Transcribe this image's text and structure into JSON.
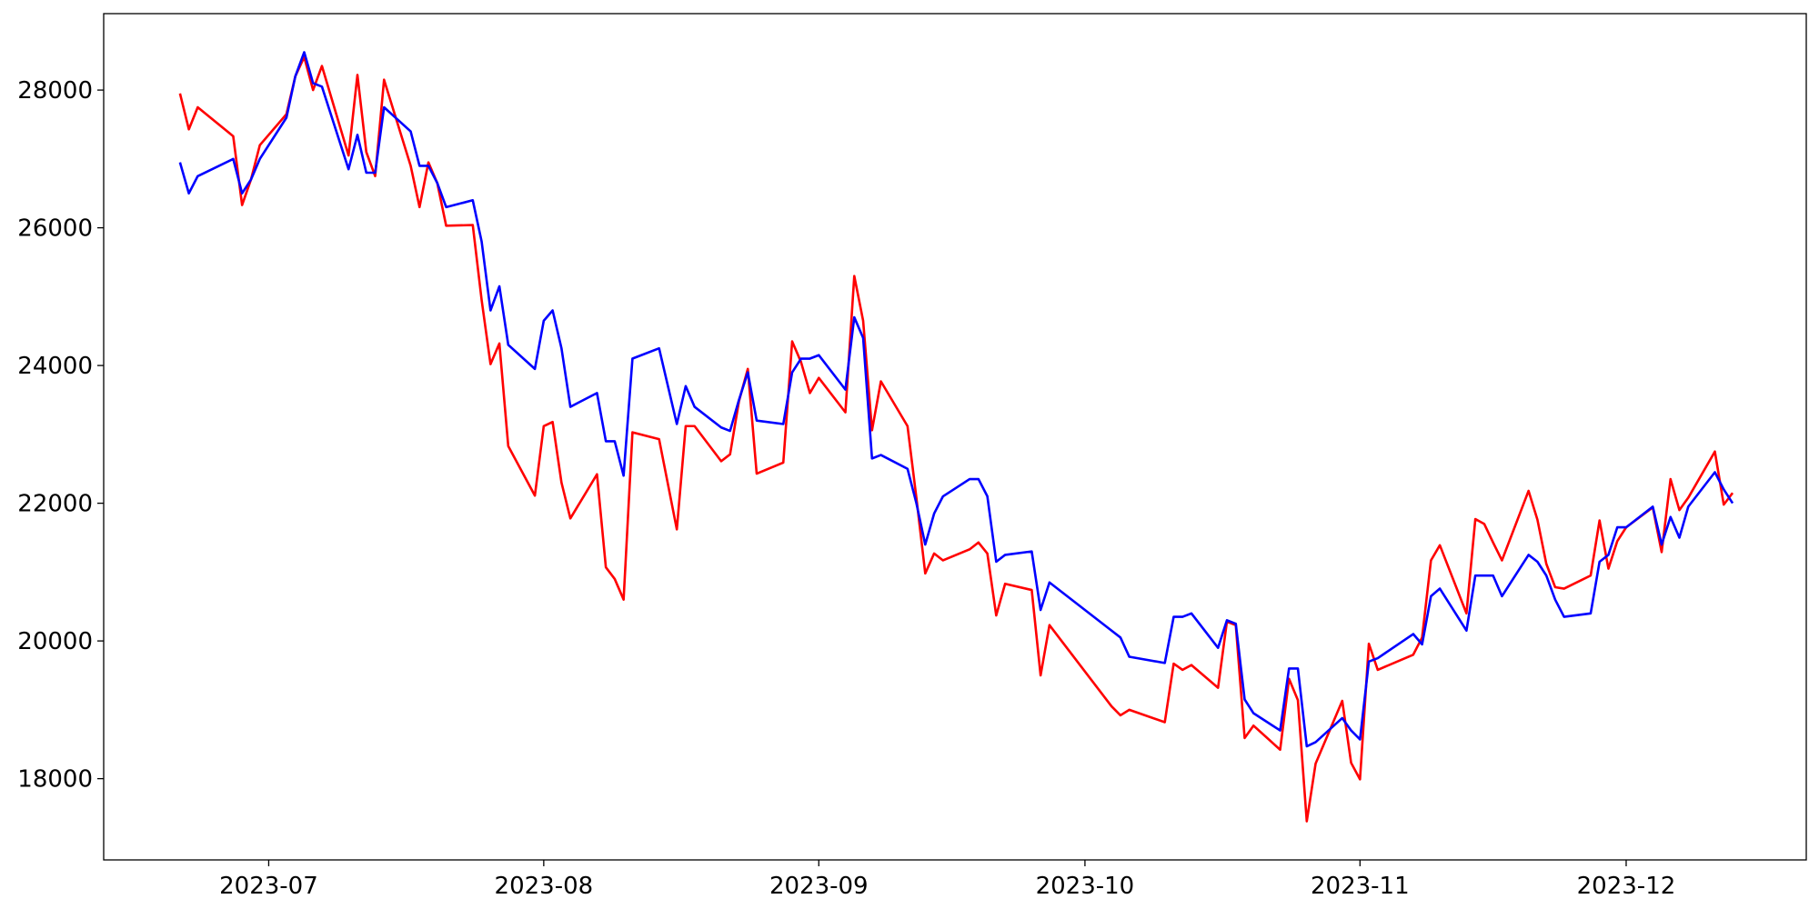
{
  "chart_data": {
    "type": "line",
    "x": [
      172,
      173,
      174,
      178,
      179,
      180,
      181,
      184,
      185,
      186,
      187,
      188,
      191,
      192,
      193,
      194,
      195,
      198,
      199,
      200,
      201,
      202,
      205,
      206,
      207,
      208,
      209,
      212,
      213,
      214,
      215,
      216,
      219,
      220,
      221,
      222,
      223,
      226,
      228,
      229,
      230,
      233,
      234,
      235,
      236,
      237,
      240,
      241,
      242,
      243,
      244,
      247,
      248,
      249,
      250,
      251,
      254,
      255,
      256,
      257,
      258,
      261,
      262,
      263,
      264,
      265,
      268,
      269,
      270,
      277,
      278,
      279,
      283,
      284,
      285,
      286,
      289,
      290,
      291,
      292,
      293,
      296,
      297,
      298,
      299,
      300,
      303,
      304,
      305,
      306,
      307,
      311,
      312,
      313,
      314,
      317,
      318,
      319,
      320,
      321,
      324,
      325,
      326,
      327,
      328,
      331,
      332,
      333,
      334,
      335,
      338,
      339,
      340,
      341,
      342,
      345,
      346,
      347
    ],
    "series": [
      {
        "color": "#ff0000",
        "values": [
          27950,
          27430,
          27750,
          27330,
          26330,
          26700,
          27200,
          27650,
          28200,
          28480,
          28000,
          28350,
          27050,
          28220,
          27100,
          26750,
          28150,
          26900,
          26300,
          26950,
          26650,
          26030,
          26040,
          24950,
          24020,
          24320,
          22830,
          22110,
          23120,
          23180,
          22300,
          21780,
          22420,
          21070,
          20900,
          20600,
          23030,
          22930,
          21620,
          23120,
          23120,
          22610,
          22710,
          23480,
          23950,
          22430,
          22590,
          24350,
          24050,
          23600,
          23820,
          23320,
          25300,
          24650,
          23060,
          23770,
          23120,
          22080,
          20980,
          21270,
          21170,
          21330,
          21430,
          21270,
          20370,
          20830,
          20740,
          19500,
          20230,
          19050,
          18920,
          19000,
          18820,
          19670,
          19580,
          19650,
          19320,
          20280,
          20230,
          18590,
          18770,
          18420,
          19450,
          19140,
          17380,
          18220,
          19130,
          18230,
          17990,
          19960,
          19580,
          19800,
          20050,
          21170,
          21390,
          20400,
          21770,
          21700,
          21430,
          21170,
          22180,
          21760,
          21120,
          20780,
          20760,
          20950,
          21750,
          21050,
          21450,
          21650,
          21940,
          21290,
          22350,
          21900,
          22080,
          22750,
          21980,
          22150
        ]
      },
      {
        "color": "#0000ff",
        "values": [
          26950,
          26500,
          26750,
          27000,
          26500,
          26700,
          27000,
          27600,
          28200,
          28550,
          28100,
          28050,
          26850,
          27350,
          26800,
          26800,
          27750,
          27400,
          26900,
          26900,
          26650,
          26300,
          26400,
          25800,
          24800,
          25150,
          24300,
          23950,
          24650,
          24800,
          24250,
          23400,
          23600,
          22900,
          22900,
          22400,
          24100,
          24250,
          23150,
          23700,
          23400,
          23100,
          23050,
          23500,
          23900,
          23200,
          23150,
          23900,
          24100,
          24100,
          24150,
          23650,
          24700,
          24400,
          22650,
          22700,
          22500,
          22000,
          21400,
          21850,
          22100,
          22350,
          22350,
          22100,
          21150,
          21250,
          21300,
          20450,
          20850,
          20150,
          20050,
          19770,
          19680,
          20350,
          20350,
          20400,
          19900,
          20300,
          20250,
          19150,
          18950,
          18700,
          19600,
          19600,
          18470,
          18530,
          18880,
          18700,
          18570,
          19700,
          19750,
          20100,
          19950,
          20650,
          20760,
          20150,
          20950,
          20950,
          20950,
          20650,
          21250,
          21150,
          20950,
          20600,
          20350,
          20400,
          21150,
          21250,
          21650,
          21650,
          21950,
          21400,
          21800,
          21500,
          21950,
          22450,
          22200,
          22000
        ]
      }
    ],
    "xlim": [
      163.4,
      355.3
    ],
    "xticks": [
      {
        "value": 182,
        "label": "2023-07"
      },
      {
        "value": 213,
        "label": "2023-08"
      },
      {
        "value": 244,
        "label": "2023-09"
      },
      {
        "value": 274,
        "label": "2023-10"
      },
      {
        "value": 305,
        "label": "2023-11"
      },
      {
        "value": 335,
        "label": "2023-12"
      }
    ],
    "ylim": [
      16820,
      29110
    ],
    "yticks": [
      18000,
      20000,
      22000,
      24000,
      26000,
      28000
    ],
    "grid": false
  }
}
